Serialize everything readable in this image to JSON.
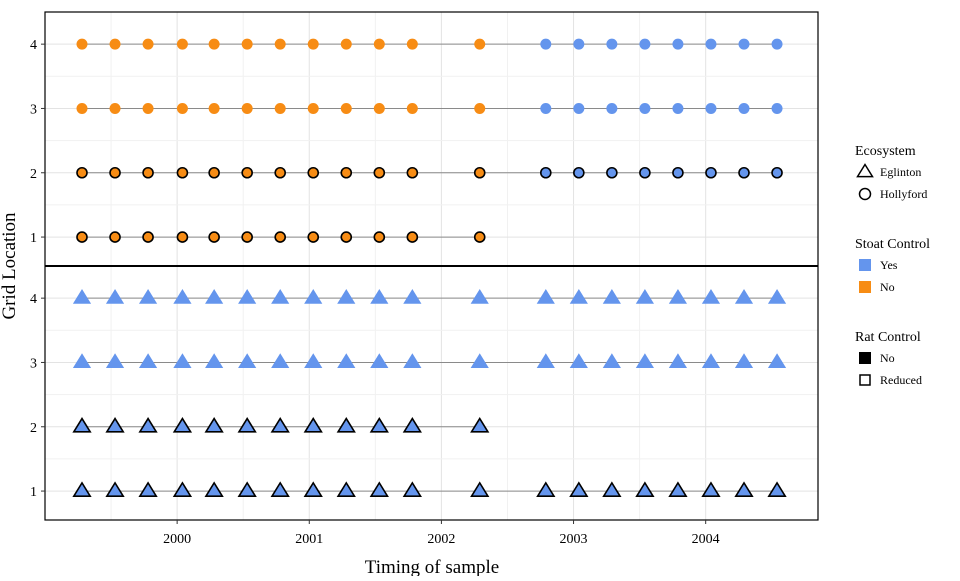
{
  "chart_data": {
    "type": "scatter",
    "title": "",
    "xlabel": "Timing of sample",
    "ylabel": "Grid Location",
    "x_ticks": [
      2000,
      2001,
      2002,
      2003,
      2004
    ],
    "y_ticks": [
      1,
      2,
      3,
      4
    ],
    "xlim": [
      1999.0,
      2004.85
    ],
    "ylim": [
      0.55,
      4.5
    ],
    "grid": true,
    "legend_position": "right",
    "colors": {
      "Yes": "#6495ED",
      "No": "#F78C14"
    },
    "panels": [
      {
        "ecosystem": "Hollyford",
        "shape": "circle",
        "series": [
          {
            "grid": 4,
            "stoat_control": "No",
            "rat_control": "Reduced",
            "x": [
              1999.28,
              1999.53,
              1999.78,
              2000.04,
              2000.28,
              2000.53,
              2000.78,
              2001.03,
              2001.28,
              2001.53,
              2001.78,
              2002.29
            ]
          },
          {
            "grid": 4,
            "stoat_control": "Yes",
            "rat_control": "Reduced",
            "x": [
              2002.79,
              2003.04,
              2003.29,
              2003.54,
              2003.79,
              2004.04,
              2004.29,
              2004.54
            ]
          },
          {
            "grid": 3,
            "stoat_control": "No",
            "rat_control": "Reduced",
            "x": [
              1999.28,
              1999.53,
              1999.78,
              2000.04,
              2000.28,
              2000.53,
              2000.78,
              2001.03,
              2001.28,
              2001.53,
              2001.78,
              2002.29
            ]
          },
          {
            "grid": 3,
            "stoat_control": "Yes",
            "rat_control": "Reduced",
            "x": [
              2002.79,
              2003.04,
              2003.29,
              2003.54,
              2003.79,
              2004.04,
              2004.29,
              2004.54
            ]
          },
          {
            "grid": 2,
            "stoat_control": "No",
            "rat_control": "No",
            "x": [
              1999.28,
              1999.53,
              1999.78,
              2000.04,
              2000.28,
              2000.53,
              2000.78,
              2001.03,
              2001.28,
              2001.53,
              2001.78,
              2002.29
            ]
          },
          {
            "grid": 2,
            "stoat_control": "Yes",
            "rat_control": "No",
            "x": [
              2002.79,
              2003.04,
              2003.29,
              2003.54,
              2003.79,
              2004.04,
              2004.29,
              2004.54
            ]
          },
          {
            "grid": 1,
            "stoat_control": "No",
            "rat_control": "No",
            "x": [
              1999.28,
              1999.53,
              1999.78,
              2000.04,
              2000.28,
              2000.53,
              2000.78,
              2001.03,
              2001.28,
              2001.53,
              2001.78,
              2002.29
            ]
          }
        ]
      },
      {
        "ecosystem": "Eglinton",
        "shape": "triangle",
        "series": [
          {
            "grid": 4,
            "stoat_control": "Yes",
            "rat_control": "Reduced",
            "x": [
              1999.28,
              1999.53,
              1999.78,
              2000.04,
              2000.28,
              2000.53,
              2000.78,
              2001.03,
              2001.28,
              2001.53,
              2001.78,
              2002.29,
              2002.79,
              2003.04,
              2003.29,
              2003.54,
              2003.79,
              2004.04,
              2004.29,
              2004.54
            ]
          },
          {
            "grid": 3,
            "stoat_control": "Yes",
            "rat_control": "Reduced",
            "x": [
              1999.28,
              1999.53,
              1999.78,
              2000.04,
              2000.28,
              2000.53,
              2000.78,
              2001.03,
              2001.28,
              2001.53,
              2001.78,
              2002.29,
              2002.79,
              2003.04,
              2003.29,
              2003.54,
              2003.79,
              2004.04,
              2004.29,
              2004.54
            ]
          },
          {
            "grid": 2,
            "stoat_control": "Yes",
            "rat_control": "No",
            "x": [
              1999.28,
              1999.53,
              1999.78,
              2000.04,
              2000.28,
              2000.53,
              2000.78,
              2001.03,
              2001.28,
              2001.53,
              2001.78,
              2002.29
            ]
          },
          {
            "grid": 1,
            "stoat_control": "Yes",
            "rat_control": "No",
            "x": [
              1999.28,
              1999.53,
              1999.78,
              2000.04,
              2000.28,
              2000.53,
              2000.78,
              2001.03,
              2001.28,
              2001.53,
              2001.78,
              2002.29,
              2002.79,
              2003.04,
              2003.29,
              2003.54,
              2003.79,
              2004.04,
              2004.29,
              2004.54
            ]
          }
        ]
      }
    ],
    "legend": {
      "groups": [
        {
          "title": "Ecosystem",
          "entries": [
            {
              "label": "Eglinton",
              "shape": "triangle"
            },
            {
              "label": "Hollyford",
              "shape": "circle"
            }
          ]
        },
        {
          "title": "Stoat Control",
          "entries": [
            {
              "label": "Yes",
              "color": "#6495ED"
            },
            {
              "label": "No",
              "color": "#F78C14"
            }
          ]
        },
        {
          "title": "Rat Control",
          "entries": [
            {
              "label": "No",
              "style": "filled-black"
            },
            {
              "label": "Reduced",
              "style": "hollow"
            }
          ]
        }
      ]
    }
  }
}
